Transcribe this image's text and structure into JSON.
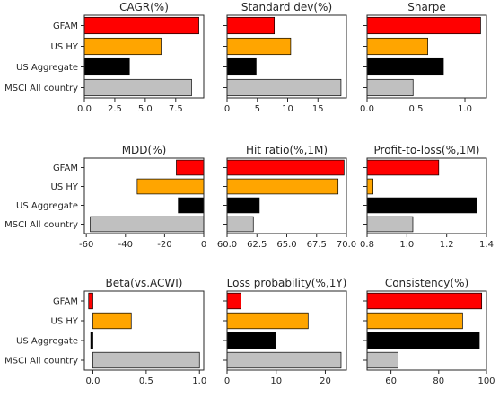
{
  "chart_data": {
    "type": "bar",
    "orientation": "horizontal",
    "categories": [
      "GFAM",
      "US HY",
      "US Aggregate",
      "MSCI All country"
    ],
    "colors": [
      "#ff0000",
      "#ffa500",
      "#000000",
      "#c0c0c0"
    ],
    "edge_color": "#000000",
    "panels": [
      {
        "title": "CAGR(%)",
        "values": [
          9.4,
          6.3,
          3.7,
          8.8
        ],
        "xlim": [
          0,
          9.8
        ],
        "ticks": [
          0,
          2.5,
          5,
          7.5
        ],
        "tick_labels": [
          "0.0",
          "2.5",
          "5.0",
          "7.5"
        ]
      },
      {
        "title": "Standard dev(%)",
        "values": [
          7.8,
          10.5,
          4.8,
          18.8
        ],
        "xlim": [
          0,
          19.7
        ],
        "ticks": [
          0,
          5,
          10,
          15
        ],
        "tick_labels": [
          "0",
          "5",
          "10",
          "15"
        ]
      },
      {
        "title": "Sharpe",
        "values": [
          1.16,
          0.62,
          0.78,
          0.47
        ],
        "xlim": [
          0,
          1.22
        ],
        "ticks": [
          0,
          0.5,
          1.0
        ],
        "tick_labels": [
          "0.0",
          "0.5",
          "1.0"
        ]
      },
      {
        "title": "MDD(%)",
        "values": [
          -14,
          -34,
          -13,
          -58
        ],
        "xlim": [
          -61,
          0
        ],
        "ticks": [
          -60,
          -40,
          -20,
          0
        ],
        "tick_labels": [
          "-60",
          "-40",
          "-20",
          "0"
        ]
      },
      {
        "title": "Hit ratio(%,1M)",
        "values": [
          69.8,
          69.3,
          62.7,
          62.2
        ],
        "xlim": [
          60,
          70
        ],
        "ticks": [
          60,
          62.5,
          65,
          67.5,
          70
        ],
        "tick_labels": [
          "60.0",
          "62.5",
          "65.0",
          "67.5",
          "70.0"
        ]
      },
      {
        "title": "Profit-to-loss(%,1M)",
        "values": [
          1.16,
          0.83,
          1.35,
          1.03
        ],
        "xlim": [
          0.8,
          1.4
        ],
        "ticks": [
          0.8,
          1.0,
          1.2,
          1.4
        ],
        "tick_labels": [
          "0.8",
          "1.0",
          "1.2",
          "1.4"
        ]
      },
      {
        "title": "Beta(vs.ACWI)",
        "values": [
          -0.04,
          0.36,
          -0.02,
          1.0
        ],
        "xlim": [
          -0.08,
          1.04
        ],
        "ticks": [
          0,
          0.5,
          1.0
        ],
        "tick_labels": [
          "0.0",
          "0.5",
          "1.0"
        ]
      },
      {
        "title": "Loss probability(%,1Y)",
        "values": [
          2.8,
          16.5,
          9.8,
          23.2
        ],
        "xlim": [
          0,
          24.3
        ],
        "ticks": [
          0,
          10,
          20
        ],
        "tick_labels": [
          "0",
          "10",
          "20"
        ]
      },
      {
        "title": "Consistency(%)",
        "values": [
          98,
          90,
          97,
          63
        ],
        "xlim": [
          50,
          100
        ],
        "ticks": [
          60,
          80,
          100
        ],
        "tick_labels": [
          "60",
          "80",
          "100"
        ]
      }
    ],
    "grid": false,
    "legend": "none"
  }
}
